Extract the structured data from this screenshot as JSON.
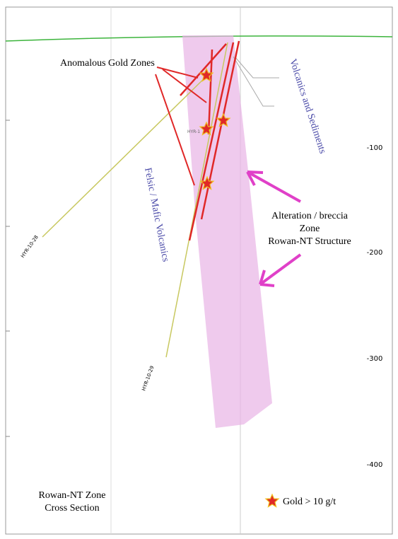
{
  "annotations": {
    "gold_zones": "Anomalous Gold Zones",
    "volcanics_sediments": "Volcanics and Sediments",
    "felsic_mafic": "Felsic / Mafic Volcanics",
    "alteration_1": "Alteration / breccia",
    "alteration_2": "Zone",
    "alteration_3": "Rowan-NT Structure"
  },
  "title": {
    "line1": "Rowan-NT Zone",
    "line2": "Cross Section"
  },
  "depth_labels": [
    "-100",
    "-200",
    "-300",
    "-400"
  ],
  "drill_holes": [
    "HYR-10-28",
    "HYR-10-29",
    "HYR-1"
  ],
  "legend": {
    "label": "Gold  > 10 g/t"
  }
}
